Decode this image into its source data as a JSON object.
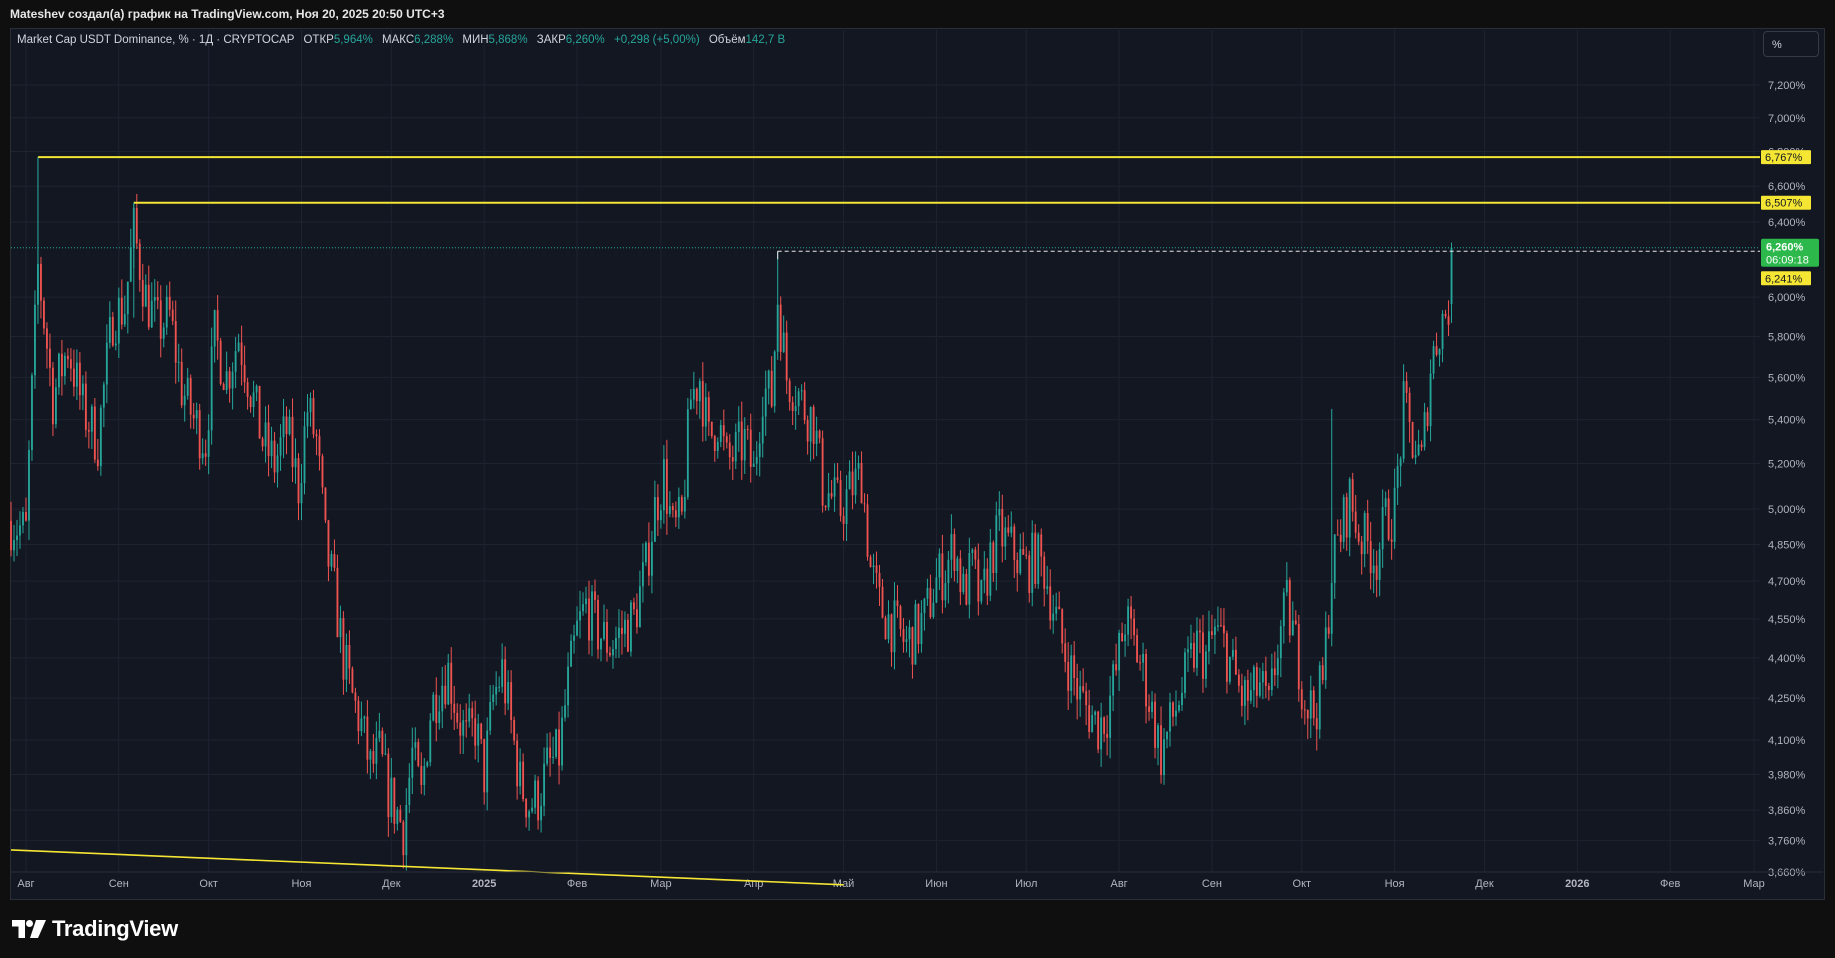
{
  "header": {
    "attribution": "Mateshev создал(а) график на TradingView.com, Ноя 20, 2025 20:50 UTC+3"
  },
  "legend": {
    "symbol": "Market Cap USDT Dominance, % · 1Д · CRYPTOCAP",
    "open_label": "ОТКР",
    "open": "5,964%",
    "high_label": "МАКС",
    "high": "6,288%",
    "low_label": "МИН",
    "low": "5,868%",
    "close_label": "ЗАКР",
    "close": "6,260%",
    "change": "+0,298 (+5,00%)",
    "volume_label": "Объём",
    "volume": "142,7 B"
  },
  "scale_button": "%",
  "brand": "TradingView",
  "colors": {
    "up": "#26a69a",
    "down": "#ef5350",
    "level": "#f5e634",
    "background": "#131722"
  },
  "chart_data": {
    "type": "candlestick",
    "timeframe": "1D",
    "y_unit": "%",
    "ylim": [
      3.66,
      7.42
    ],
    "y_scale": "log",
    "y_ticks": [
      "7,200%",
      "7,000%",
      "6,800%",
      "6,600%",
      "6,400%",
      "6,000%",
      "5,800%",
      "5,600%",
      "5,400%",
      "5,200%",
      "5,000%",
      "4,850%",
      "4,700%",
      "4,550%",
      "4,400%",
      "4,250%",
      "4,100%",
      "3,980%",
      "3,860%",
      "3,760%",
      "3,660%"
    ],
    "x_ticks": [
      "Авг",
      "Сен",
      "Окт",
      "Ноя",
      "Дек",
      "2025",
      "Фев",
      "Мар",
      "Апр",
      "Май",
      "Июн",
      "Июл",
      "Авг",
      "Сен",
      "Окт",
      "Ноя",
      "Дек",
      "2026",
      "Фев",
      "Мар"
    ],
    "x_tick_dates": [
      "2024-08-01",
      "2024-09-01",
      "2024-10-01",
      "2024-11-01",
      "2024-12-01",
      "2025-01-01",
      "2025-02-01",
      "2025-03-01",
      "2025-04-01",
      "2025-05-01",
      "2025-06-01",
      "2025-07-01",
      "2025-08-01",
      "2025-09-01",
      "2025-10-01",
      "2025-11-01",
      "2025-12-01",
      "2026-01-01",
      "2026-02-01",
      "2026-03-01"
    ],
    "x_start": "2024-07-27",
    "close_path": [
      [
        "2024-07-27",
        4.95
      ],
      [
        "2024-08-01",
        4.9
      ],
      [
        "2024-08-05",
        6.15
      ],
      [
        "2024-08-10",
        5.5
      ],
      [
        "2024-08-15",
        5.75
      ],
      [
        "2024-08-20",
        5.45
      ],
      [
        "2024-08-25",
        5.3
      ],
      [
        "2024-08-30",
        5.9
      ],
      [
        "2024-09-03",
        5.95
      ],
      [
        "2024-09-06",
        6.35
      ],
      [
        "2024-09-10",
        6.0
      ],
      [
        "2024-09-14",
        5.85
      ],
      [
        "2024-09-18",
        5.9
      ],
      [
        "2024-09-22",
        5.55
      ],
      [
        "2024-09-26",
        5.4
      ],
      [
        "2024-09-30",
        5.3
      ],
      [
        "2024-10-03",
        5.8
      ],
      [
        "2024-10-07",
        5.6
      ],
      [
        "2024-10-11",
        5.8
      ],
      [
        "2024-10-15",
        5.55
      ],
      [
        "2024-10-19",
        5.3
      ],
      [
        "2024-10-23",
        5.2
      ],
      [
        "2024-10-27",
        5.35
      ],
      [
        "2024-10-31",
        5.1
      ],
      [
        "2024-11-03",
        5.45
      ],
      [
        "2024-11-06",
        5.3
      ],
      [
        "2024-11-09",
        4.85
      ],
      [
        "2024-11-12",
        4.65
      ],
      [
        "2024-11-15",
        4.4
      ],
      [
        "2024-11-18",
        4.25
      ],
      [
        "2024-11-21",
        4.15
      ],
      [
        "2024-11-24",
        4.0
      ],
      [
        "2024-11-27",
        4.05
      ],
      [
        "2024-11-30",
        3.92
      ],
      [
        "2024-12-03",
        3.85
      ],
      [
        "2024-12-05",
        3.8
      ],
      [
        "2024-12-08",
        4.05
      ],
      [
        "2024-12-11",
        3.9
      ],
      [
        "2024-12-14",
        4.2
      ],
      [
        "2024-12-17",
        4.3
      ],
      [
        "2024-12-20",
        4.35
      ],
      [
        "2024-12-23",
        4.2
      ],
      [
        "2024-12-26",
        4.1
      ],
      [
        "2024-12-29",
        4.15
      ],
      [
        "2025-01-01",
        3.98
      ],
      [
        "2025-01-04",
        4.25
      ],
      [
        "2025-01-07",
        4.35
      ],
      [
        "2025-01-10",
        4.15
      ],
      [
        "2025-01-13",
        3.95
      ],
      [
        "2025-01-16",
        3.88
      ],
      [
        "2025-01-19",
        3.9
      ],
      [
        "2025-01-22",
        4.0
      ],
      [
        "2025-01-26",
        4.05
      ],
      [
        "2025-01-29",
        4.3
      ],
      [
        "2025-02-01",
        4.5
      ],
      [
        "2025-02-04",
        4.6
      ],
      [
        "2025-02-08",
        4.5
      ],
      [
        "2025-02-12",
        4.45
      ],
      [
        "2025-02-16",
        4.5
      ],
      [
        "2025-02-20",
        4.55
      ],
      [
        "2025-02-24",
        4.75
      ],
      [
        "2025-02-27",
        5.0
      ],
      [
        "2025-03-02",
        5.15
      ],
      [
        "2025-03-05",
        4.9
      ],
      [
        "2025-03-08",
        4.95
      ],
      [
        "2025-03-11",
        5.5
      ],
      [
        "2025-03-14",
        5.6
      ],
      [
        "2025-03-17",
        5.3
      ],
      [
        "2025-03-20",
        5.4
      ],
      [
        "2025-03-23",
        5.2
      ],
      [
        "2025-03-26",
        5.25
      ],
      [
        "2025-03-29",
        5.3
      ],
      [
        "2025-04-01",
        5.15
      ],
      [
        "2025-04-04",
        5.55
      ],
      [
        "2025-04-07",
        5.5
      ],
      [
        "2025-04-09",
        6.0
      ],
      [
        "2025-04-12",
        5.6
      ],
      [
        "2025-04-15",
        5.55
      ],
      [
        "2025-04-18",
        5.45
      ],
      [
        "2025-04-21",
        5.4
      ],
      [
        "2025-04-24",
        5.1
      ],
      [
        "2025-04-27",
        5.05
      ],
      [
        "2025-04-30",
        5.0
      ],
      [
        "2025-05-04",
        5.1
      ],
      [
        "2025-05-07",
        5.15
      ],
      [
        "2025-05-10",
        4.75
      ],
      [
        "2025-05-13",
        4.6
      ],
      [
        "2025-05-16",
        4.55
      ],
      [
        "2025-05-19",
        4.5
      ],
      [
        "2025-05-22",
        4.45
      ],
      [
        "2025-05-25",
        4.5
      ],
      [
        "2025-05-28",
        4.55
      ],
      [
        "2025-06-01",
        4.7
      ],
      [
        "2025-06-04",
        4.75
      ],
      [
        "2025-06-07",
        4.85
      ],
      [
        "2025-06-10",
        4.65
      ],
      [
        "2025-06-13",
        4.75
      ],
      [
        "2025-06-16",
        4.6
      ],
      [
        "2025-06-19",
        4.8
      ],
      [
        "2025-06-22",
        4.9
      ],
      [
        "2025-06-25",
        4.85
      ],
      [
        "2025-06-28",
        4.8
      ],
      [
        "2025-07-01",
        4.75
      ],
      [
        "2025-07-04",
        4.8
      ],
      [
        "2025-07-07",
        4.75
      ],
      [
        "2025-07-10",
        4.6
      ],
      [
        "2025-07-13",
        4.45
      ],
      [
        "2025-07-16",
        4.35
      ],
      [
        "2025-07-19",
        4.25
      ],
      [
        "2025-07-22",
        4.2
      ],
      [
        "2025-07-25",
        4.15
      ],
      [
        "2025-07-28",
        4.2
      ],
      [
        "2025-07-31",
        4.35
      ],
      [
        "2025-08-03",
        4.55
      ],
      [
        "2025-08-06",
        4.45
      ],
      [
        "2025-08-09",
        4.35
      ],
      [
        "2025-08-12",
        4.2
      ],
      [
        "2025-08-15",
        4.05
      ],
      [
        "2025-08-18",
        4.15
      ],
      [
        "2025-08-21",
        4.25
      ],
      [
        "2025-08-24",
        4.35
      ],
      [
        "2025-08-27",
        4.45
      ],
      [
        "2025-08-30",
        4.4
      ],
      [
        "2025-09-02",
        4.5
      ],
      [
        "2025-09-05",
        4.45
      ],
      [
        "2025-09-08",
        4.35
      ],
      [
        "2025-09-11",
        4.25
      ],
      [
        "2025-09-14",
        4.25
      ],
      [
        "2025-09-17",
        4.3
      ],
      [
        "2025-09-20",
        4.2
      ],
      [
        "2025-09-23",
        4.45
      ],
      [
        "2025-09-26",
        4.6
      ],
      [
        "2025-09-29",
        4.45
      ],
      [
        "2025-10-02",
        4.25
      ],
      [
        "2025-10-05",
        4.2
      ],
      [
        "2025-10-08",
        4.3
      ],
      [
        "2025-10-11",
        4.75
      ],
      [
        "2025-10-14",
        4.9
      ],
      [
        "2025-10-17",
        5.05
      ],
      [
        "2025-10-20",
        4.9
      ],
      [
        "2025-10-23",
        4.85
      ],
      [
        "2025-10-26",
        4.8
      ],
      [
        "2025-10-29",
        4.95
      ],
      [
        "2025-11-01",
        5.0
      ],
      [
        "2025-11-04",
        5.45
      ],
      [
        "2025-11-07",
        5.3
      ],
      [
        "2025-11-10",
        5.2
      ],
      [
        "2025-11-13",
        5.65
      ],
      [
        "2025-11-16",
        5.85
      ],
      [
        "2025-11-19",
        5.96
      ],
      [
        "2025-11-20",
        6.26
      ]
    ],
    "last_candle": {
      "date": "2025-11-20",
      "open": 5.964,
      "high": 6.288,
      "low": 5.868,
      "close": 6.26
    },
    "horizontal_levels": [
      {
        "value": 6.767,
        "label": "6,767%",
        "from": "2024-08-05"
      },
      {
        "value": 6.507,
        "label": "6,507%",
        "from": "2024-09-06"
      }
    ],
    "dashed_level": {
      "value": 6.241,
      "label": "6,241%",
      "from": "2025-04-09"
    },
    "trendline": {
      "from": [
        "2024-07-27",
        3.73
      ],
      "to": [
        "2025-05-01",
        3.62
      ]
    },
    "price_label": {
      "value": "6,260%",
      "countdown": "06:09:18"
    },
    "grid": true
  }
}
